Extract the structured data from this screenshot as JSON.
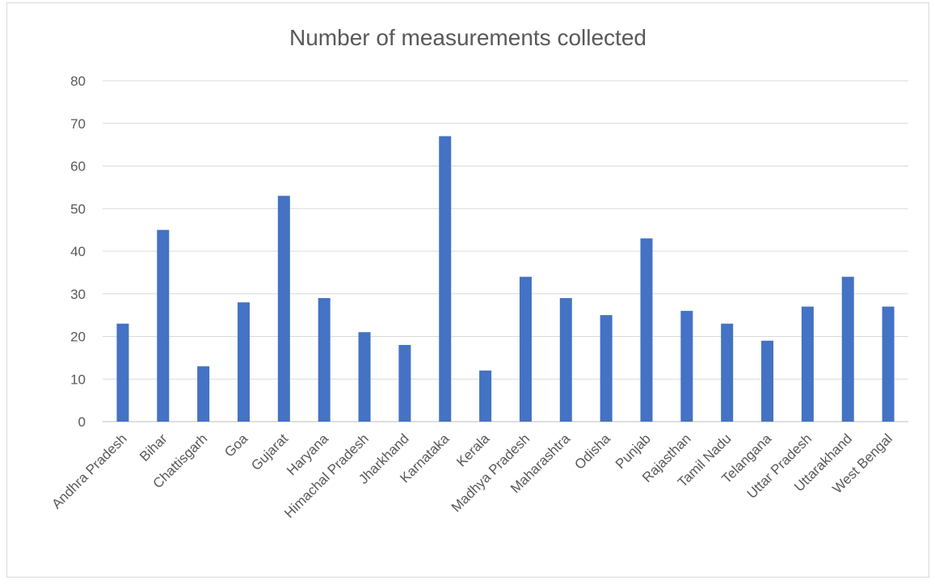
{
  "chart_data": {
    "type": "bar",
    "title": "Number of measurements collected",
    "xlabel": "",
    "ylabel": "",
    "ylim": [
      0,
      80
    ],
    "yticks": [
      0,
      10,
      20,
      30,
      40,
      50,
      60,
      70,
      80
    ],
    "categories": [
      "Andhra Pradesh",
      "Bihar",
      "Chattisgarh",
      "Goa",
      "Gujarat",
      "Haryana",
      "Himachal Pradesh",
      "Jharkhand",
      "Karnataka",
      "Kerala",
      "Madhya Pradesh",
      "Maharashtra",
      "Odisha",
      "Punjab",
      "Rajasthan",
      "Tamil Nadu",
      "Telangana",
      "Uttar Pradesh",
      "Uttarakhand",
      "West Bengal"
    ],
    "values": [
      23,
      45,
      13,
      28,
      53,
      29,
      21,
      18,
      67,
      12,
      34,
      29,
      25,
      43,
      26,
      23,
      19,
      27,
      34,
      27
    ],
    "grid": true,
    "legend": "none",
    "colors": {
      "bar": "#4472c4",
      "gridline": "#d9d9d9",
      "text": "#595959"
    }
  }
}
